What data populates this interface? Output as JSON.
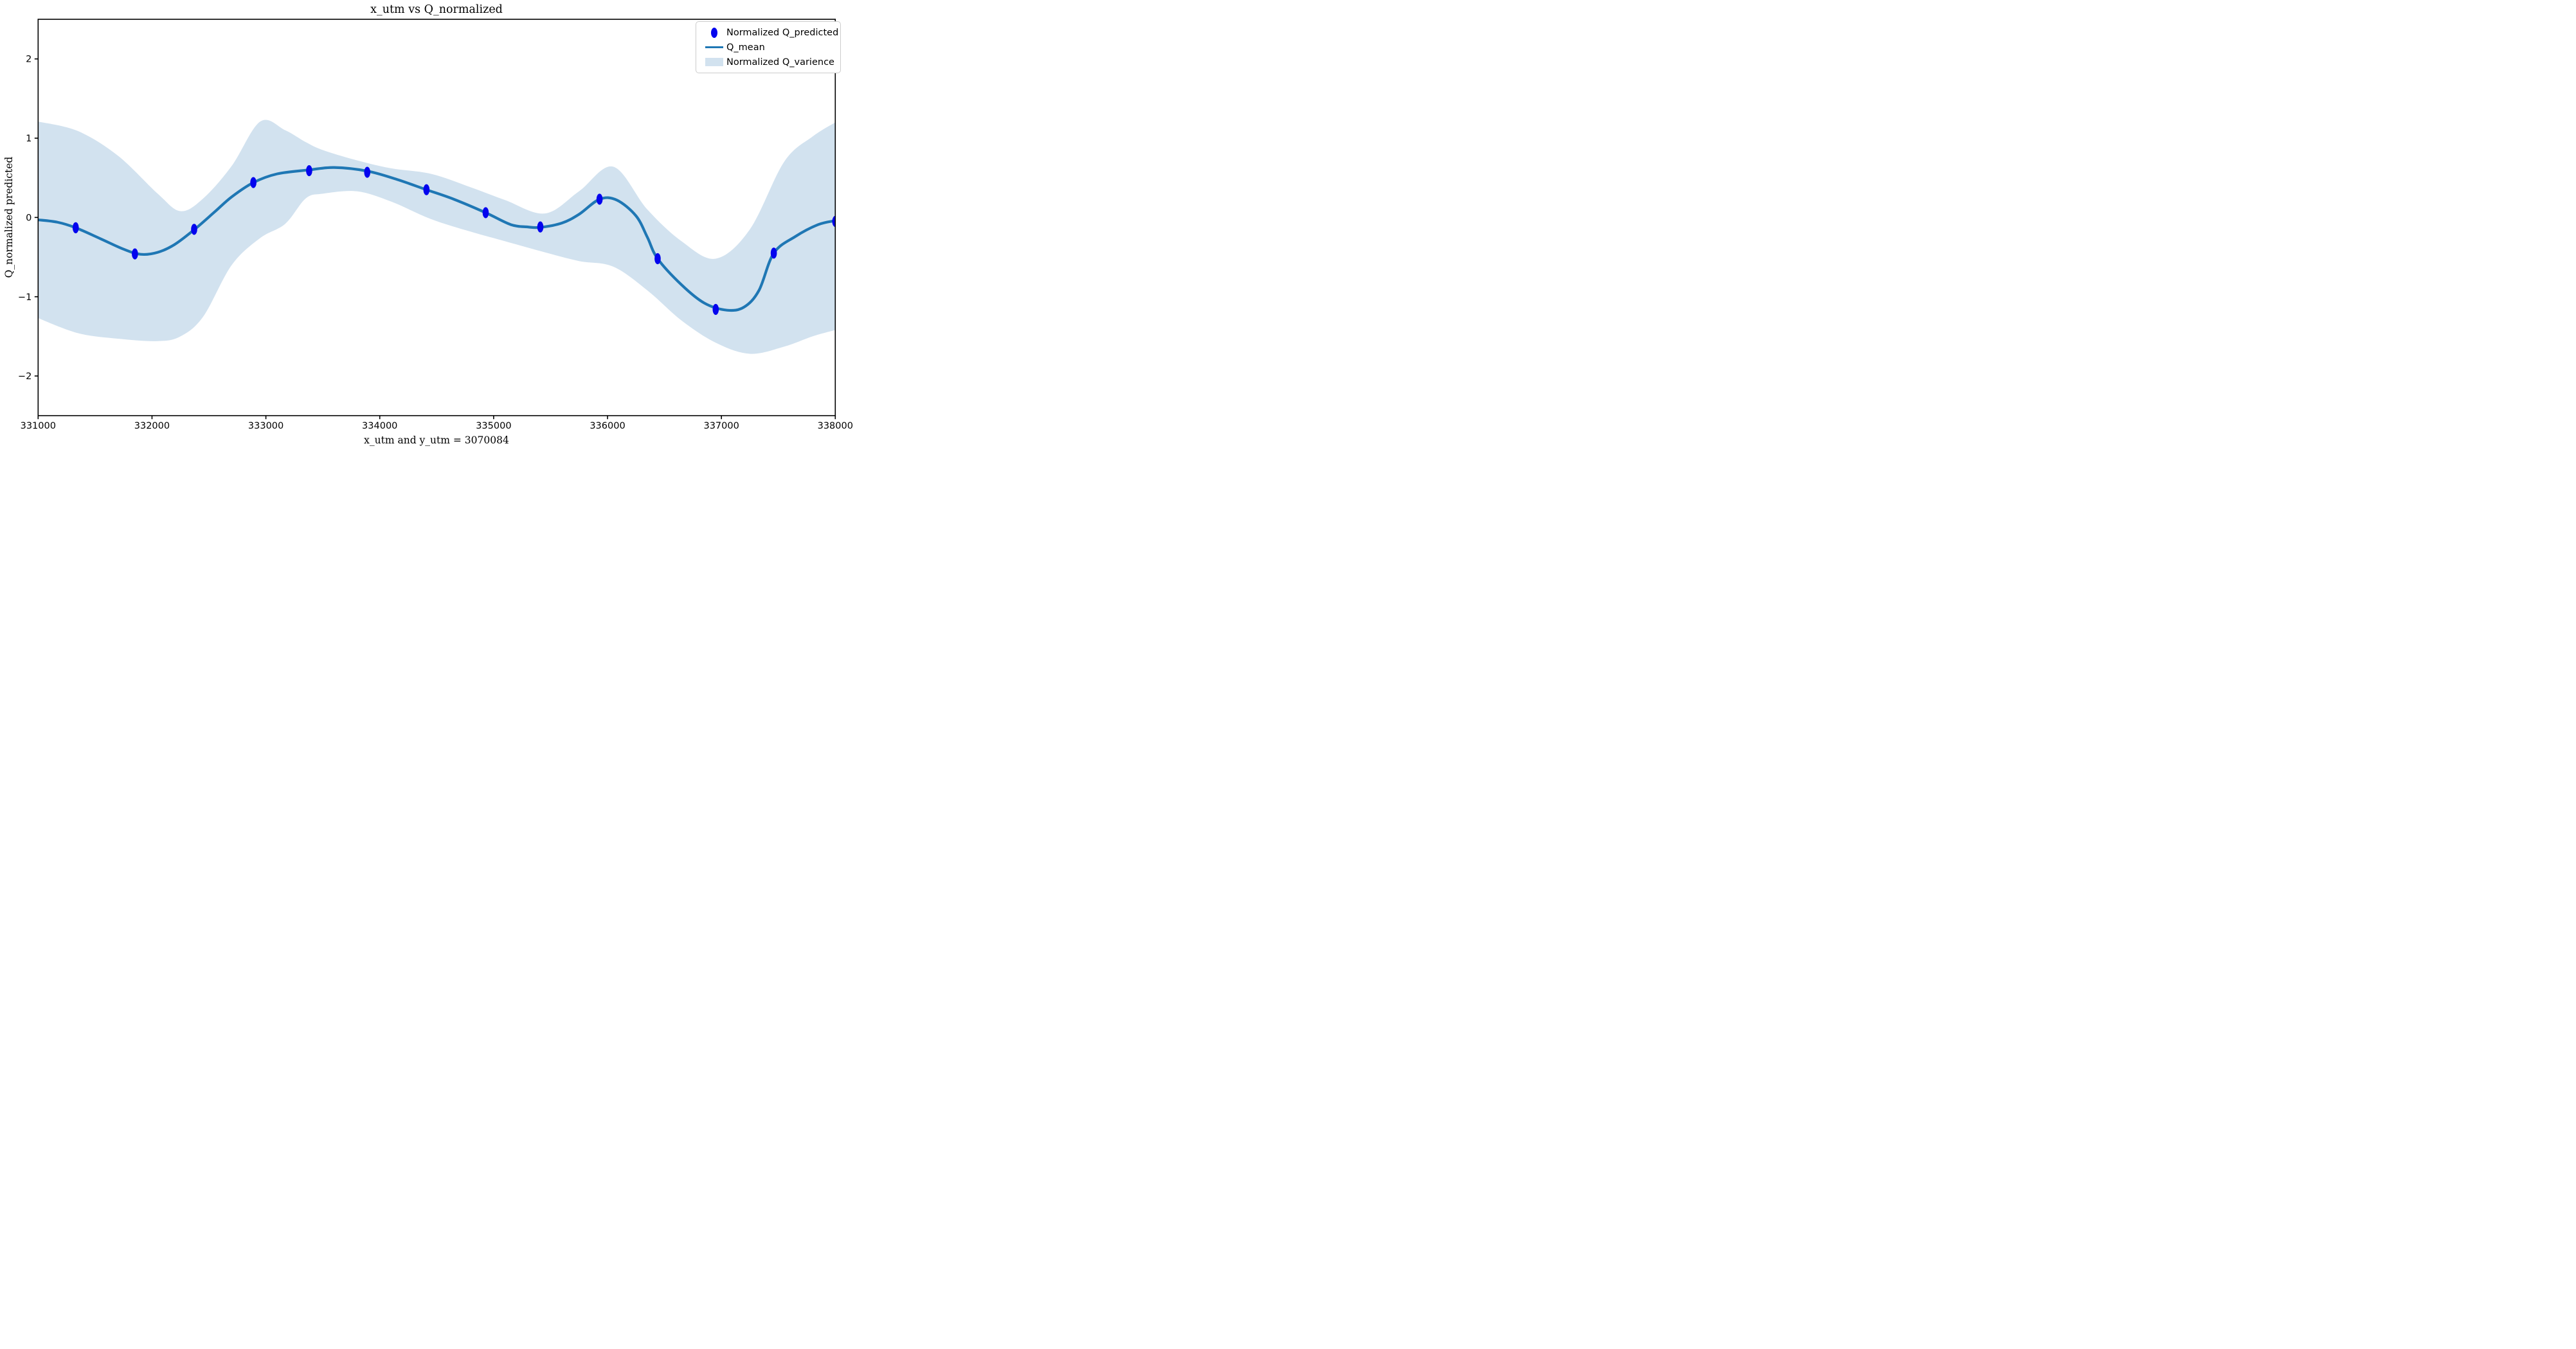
{
  "figure": {
    "title": "x_utm vs Q_normalized",
    "xlabel": "x_utm and y_utm = 3070084",
    "ylabel": "Q_normalized predicted"
  },
  "legend": {
    "items": [
      {
        "label": "Normalized Q_predicted",
        "swatch": "marker"
      },
      {
        "label": "Q_mean",
        "swatch": "line"
      },
      {
        "label": "Normalized Q_varience",
        "swatch": "patch"
      }
    ]
  },
  "colors": {
    "mean_line": "#1f77b4",
    "scatter_marker": "#0404ee",
    "variance_band": "#d2e2ef",
    "axis": "#000000",
    "legend_border": "#cccccc"
  },
  "chart_data": {
    "type": "line",
    "title": "x_utm vs Q_normalized",
    "xlabel": "x_utm and y_utm = 3070084",
    "ylabel": "Q_normalized predicted",
    "xlim": [
      331000,
      338000
    ],
    "ylim": [
      -2.5,
      2.5
    ],
    "x_ticks": [
      331000,
      332000,
      333000,
      334000,
      335000,
      336000,
      337000,
      338000
    ],
    "y_ticks": [
      -2,
      -1,
      0,
      1,
      2
    ],
    "grid": false,
    "legend_position": "upper right",
    "series": [
      {
        "name": "Normalized Q_predicted",
        "type": "scatter",
        "x": [
          331330,
          331850,
          332370,
          332890,
          333380,
          333890,
          334410,
          334930,
          335410,
          335930,
          336440,
          336950,
          337460,
          338000
        ],
        "y": [
          -0.13,
          -0.46,
          -0.15,
          0.44,
          0.59,
          0.57,
          0.35,
          0.06,
          -0.12,
          0.23,
          -0.52,
          -1.16,
          -0.45,
          -0.05
        ]
      },
      {
        "name": "Q_mean",
        "type": "line",
        "x": [
          331000,
          331170,
          331330,
          331550,
          331750,
          331900,
          332050,
          332200,
          332370,
          332550,
          332700,
          332890,
          333100,
          333380,
          333600,
          333890,
          334150,
          334410,
          334650,
          334930,
          335150,
          335300,
          335410,
          335600,
          335750,
          335930,
          336080,
          336250,
          336350,
          336440,
          336650,
          336850,
          337050,
          337200,
          337330,
          337460,
          337650,
          337850,
          338000
        ],
        "y": [
          -0.03,
          -0.06,
          -0.13,
          -0.27,
          -0.4,
          -0.465,
          -0.44,
          -0.34,
          -0.155,
          0.07,
          0.26,
          0.44,
          0.55,
          0.6,
          0.63,
          0.585,
          0.48,
          0.35,
          0.23,
          0.06,
          -0.09,
          -0.12,
          -0.125,
          -0.07,
          0.04,
          0.23,
          0.22,
          0.02,
          -0.25,
          -0.52,
          -0.85,
          -1.08,
          -1.17,
          -1.13,
          -0.92,
          -0.45,
          -0.24,
          -0.09,
          -0.04
        ]
      },
      {
        "name": "Normalized Q_varience",
        "type": "band",
        "x": [
          331000,
          331350,
          331700,
          332050,
          332250,
          332450,
          332700,
          332950,
          333170,
          333350,
          333500,
          333800,
          334100,
          334450,
          334800,
          335100,
          335450,
          335750,
          336050,
          336350,
          336650,
          336950,
          337250,
          337550,
          337800,
          338000
        ],
        "upper": [
          1.21,
          1.09,
          0.78,
          0.3,
          0.08,
          0.24,
          0.65,
          1.21,
          1.1,
          0.95,
          0.85,
          0.72,
          0.62,
          0.55,
          0.38,
          0.22,
          0.05,
          0.33,
          0.64,
          0.1,
          -0.3,
          -0.52,
          -0.15,
          0.7,
          1.02,
          1.2
        ],
        "lower": [
          -1.27,
          -1.46,
          -1.53,
          -1.56,
          -1.5,
          -1.25,
          -0.6,
          -0.26,
          -0.08,
          0.24,
          0.3,
          0.33,
          0.2,
          -0.02,
          -0.18,
          -0.3,
          -0.44,
          -0.55,
          -0.62,
          -0.92,
          -1.3,
          -1.58,
          -1.72,
          -1.63,
          -1.5,
          -1.42
        ]
      }
    ]
  }
}
